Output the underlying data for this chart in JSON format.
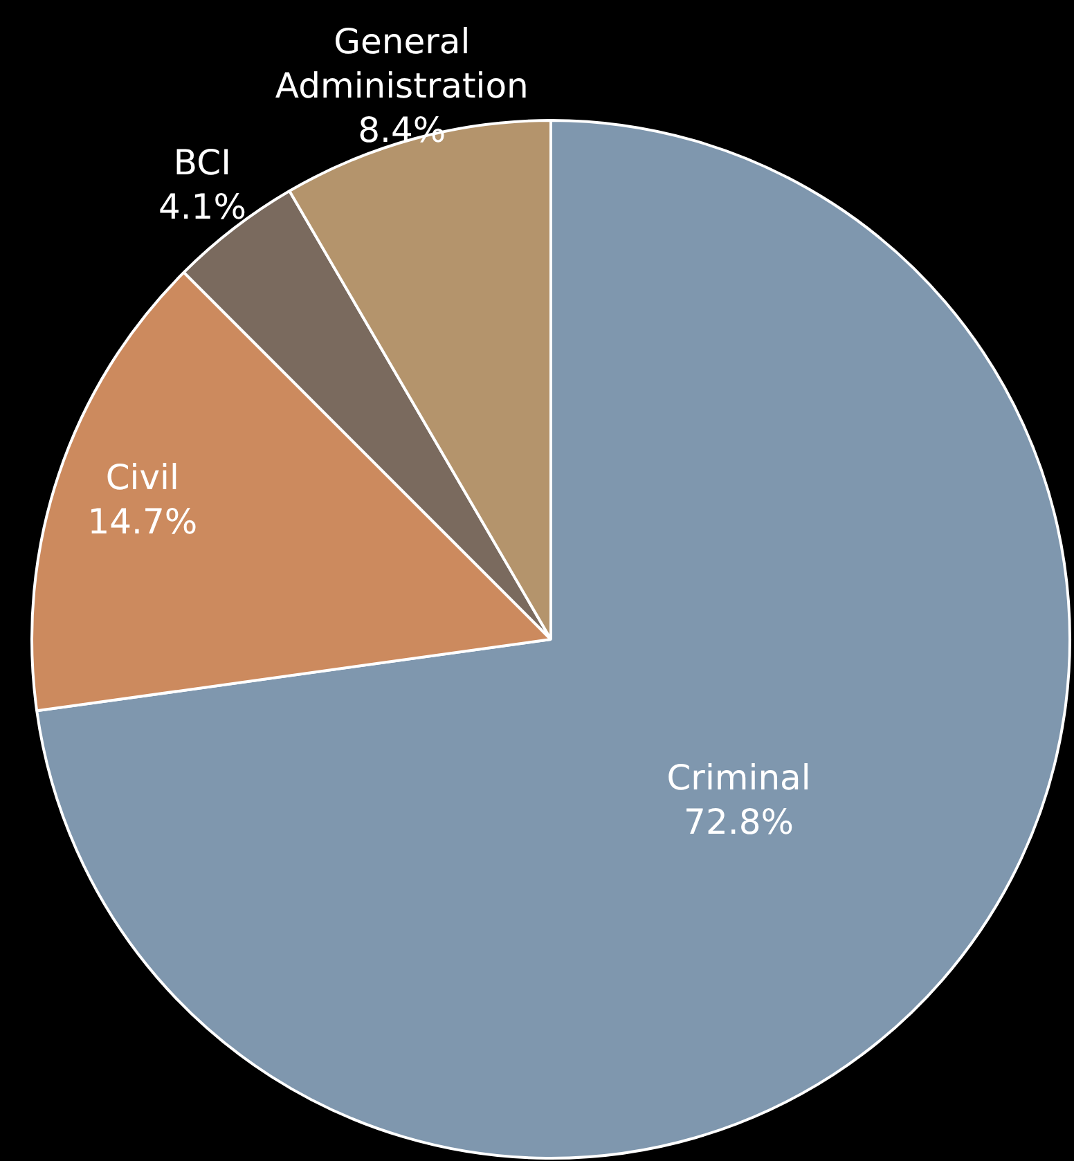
{
  "chart_data": {
    "type": "pie",
    "categories": [
      "Criminal",
      "Civil",
      "BCI",
      "General Administration"
    ],
    "values": [
      72.8,
      14.7,
      4.1,
      8.4
    ],
    "colors": [
      "#7f97ae",
      "#cc8a5e",
      "#7a6a5e",
      "#b4946c"
    ],
    "value_labels": [
      "72.8%",
      "14.7%",
      "4.1%",
      "8.4%"
    ],
    "legend": false
  }
}
